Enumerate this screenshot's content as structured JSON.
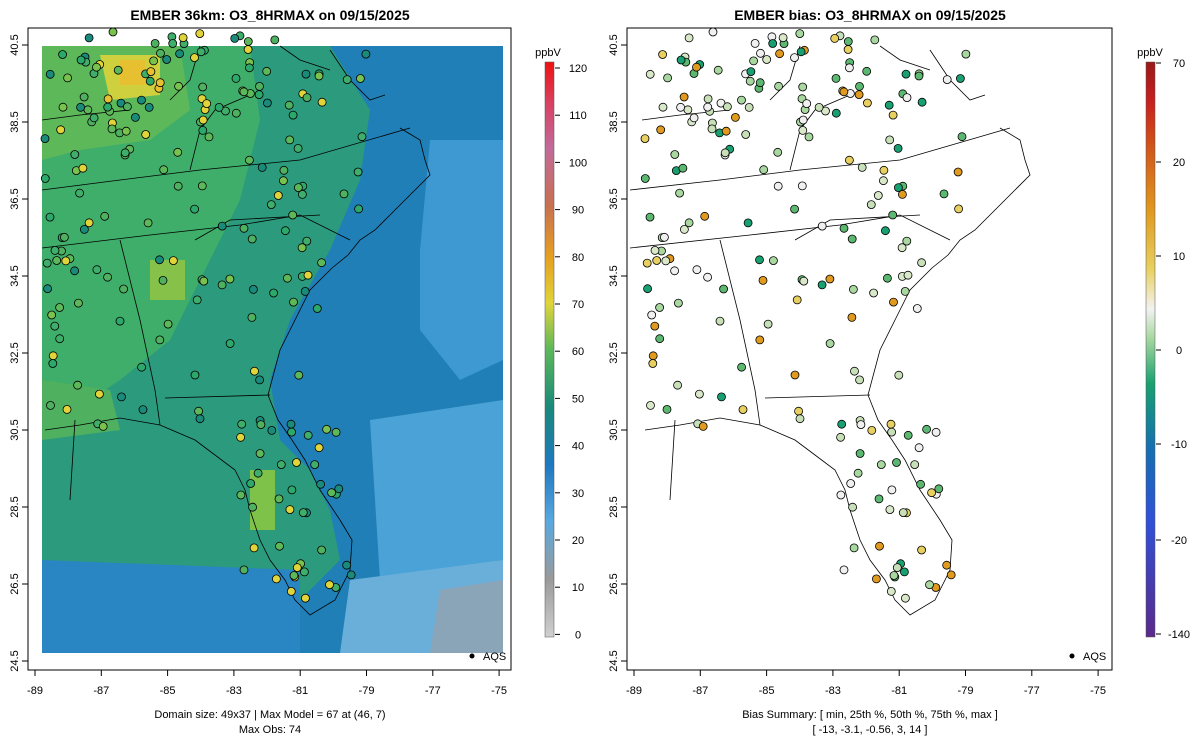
{
  "panels": [
    {
      "id": "model",
      "title": "EMBER 36km: O3_8HRMAX on 09/15/2025",
      "footer_line1": "Domain size: 49x37 | Max Model = 67 at (46, 7)",
      "footer_line2": "Max Obs: 74",
      "legend_label": "AQS",
      "colorbar_unit": "ppbV",
      "colorbar_ticks": [
        "120",
        "110",
        "100",
        "90",
        "80",
        "70",
        "60",
        "50",
        "40",
        "30",
        "20",
        "10",
        "0"
      ],
      "x_ticks": [
        "-89",
        "-87",
        "-85",
        "-83",
        "-81",
        "-79",
        "-77",
        "-75"
      ],
      "y_ticks": [
        "40.5",
        "38.5",
        "36.5",
        "34.5",
        "32.5",
        "30.5",
        "28.5",
        "26.5",
        "24.5"
      ]
    },
    {
      "id": "bias",
      "title": "EMBER bias: O3_8HRMAX on 09/15/2025",
      "footer_line1": "Bias Summary: [ min, 25th %, 50th %, 75th %, max ]",
      "footer_line2": "[ -13,   -3.1,   -0.56,   3,   14 ]",
      "legend_label": "AQS",
      "colorbar_unit": "ppbV",
      "colorbar_ticks": [
        "70",
        "20",
        "10",
        "0",
        "-10",
        "-20",
        "-140"
      ],
      "x_ticks": [
        "-89",
        "-87",
        "-85",
        "-83",
        "-81",
        "-79",
        "-77",
        "-75"
      ],
      "y_ticks": [
        "40.5",
        "38.5",
        "36.5",
        "34.5",
        "32.5",
        "30.5",
        "28.5",
        "26.5",
        "24.5"
      ]
    }
  ],
  "colors": {
    "model_scale": [
      "#c8c8c8",
      "#9a9a9a",
      "#5aa8df",
      "#1e78c0",
      "#1a8a7a",
      "#2da86b",
      "#78c24d",
      "#e0d43a",
      "#e6a020",
      "#d0603a",
      "#c26a9a",
      "#d94060",
      "#ee1111"
    ],
    "bias_scale": [
      "#5a2a8a",
      "#3050d8",
      "#1470b0",
      "#18a070",
      "#a8d8a0",
      "#f0f0f0",
      "#e8d060",
      "#e09a20",
      "#d05018",
      "#c82020",
      "#9a1818"
    ],
    "station_outline": "#000000",
    "land_background": "#ffffff"
  }
}
